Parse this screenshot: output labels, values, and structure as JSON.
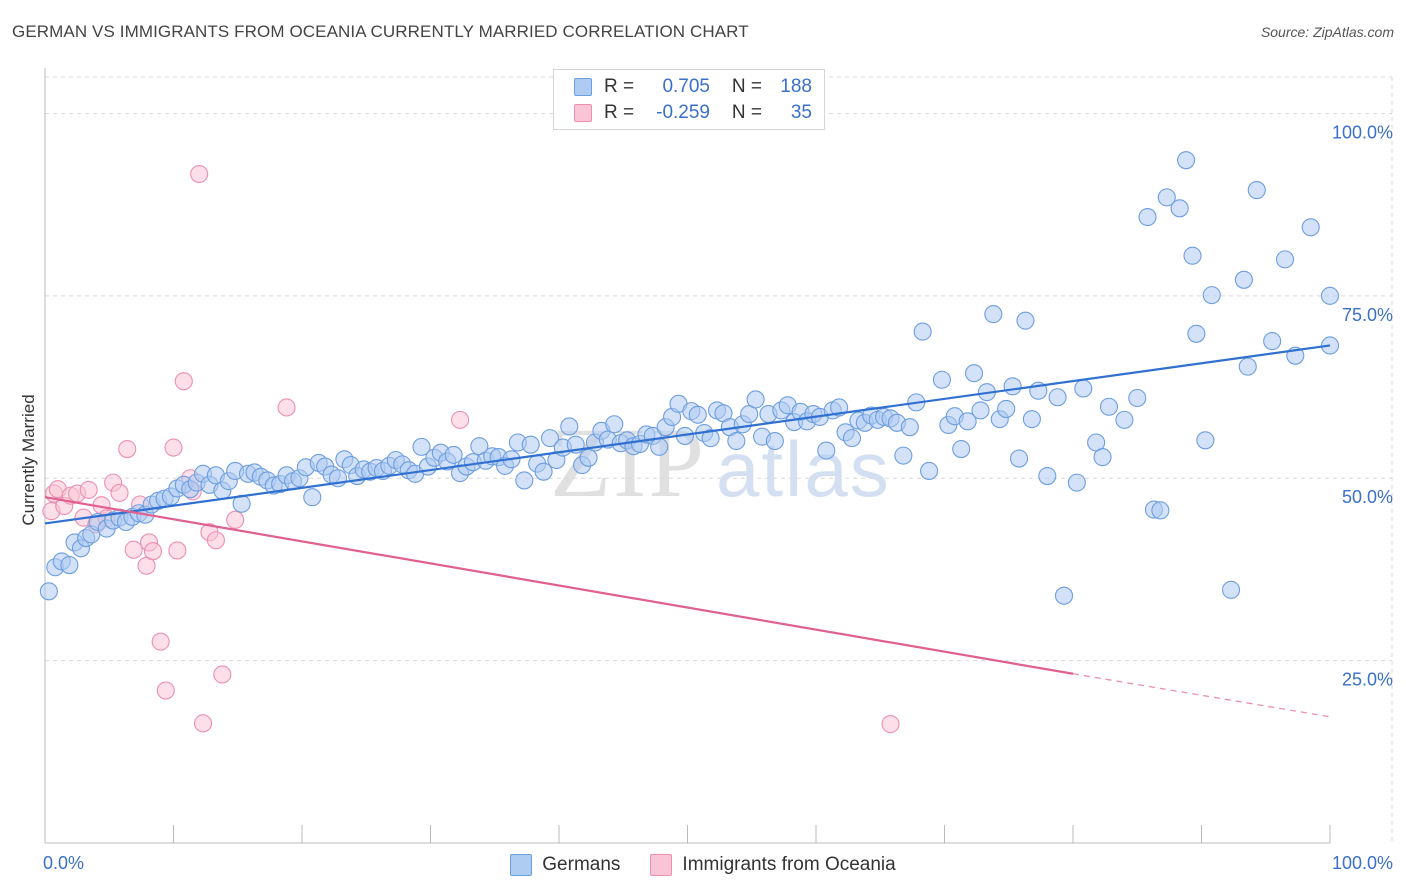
{
  "title": "GERMAN VS IMMIGRANTS FROM OCEANIA CURRENTLY MARRIED CORRELATION CHART",
  "source": "Source: ZipAtlas.com",
  "watermark": {
    "zip": "ZIP",
    "atlas": "atlas"
  },
  "legend_stats": {
    "r_label": "R =",
    "n_label": "N =",
    "germans": {
      "r": "0.705",
      "n": "188"
    },
    "oceania": {
      "r": "-0.259",
      "n": "35"
    }
  },
  "colors": {
    "blue_fill": "#aecbf2",
    "blue_stroke": "#6d9ee0",
    "blue_line": "#3070d0",
    "pink_fill": "#f9c5d6",
    "pink_stroke": "#ec8fb0",
    "pink_line": "#e0608f",
    "tick_text": "#3a70c8",
    "grid": "#d9d9d9"
  },
  "chart_data": {
    "type": "scatter",
    "title": "GERMAN VS IMMIGRANTS FROM OCEANIA CURRENTLY MARRIED CORRELATION CHART",
    "xlabel": "",
    "ylabel": "Currently Married",
    "xlim": [
      0,
      100
    ],
    "ylim": [
      0,
      105
    ],
    "x_tick_labels": [
      "0.0%",
      "100.0%"
    ],
    "y_ticks": [
      {
        "value": 25,
        "label": "25.0%"
      },
      {
        "value": 50,
        "label": "50.0%"
      },
      {
        "value": 75,
        "label": "75.0%"
      },
      {
        "value": 100,
        "label": "100.0%"
      }
    ],
    "series": [
      {
        "name": "Germans",
        "color": "blue",
        "trend": {
          "x0": 0,
          "y0": 43.8,
          "x1": 100,
          "y1": 68.2
        },
        "points": [
          [
            0.3,
            34.5
          ],
          [
            0.8,
            37.8
          ],
          [
            1.3,
            38.6
          ],
          [
            1.9,
            38.1
          ],
          [
            2.3,
            41.2
          ],
          [
            2.8,
            40.4
          ],
          [
            3.2,
            41.8
          ],
          [
            3.6,
            42.3
          ],
          [
            4.1,
            44.0
          ],
          [
            4.8,
            43.1
          ],
          [
            5.3,
            44.2
          ],
          [
            5.8,
            44.6
          ],
          [
            6.3,
            44.0
          ],
          [
            6.8,
            44.7
          ],
          [
            7.3,
            45.2
          ],
          [
            7.8,
            45.0
          ],
          [
            8.3,
            46.4
          ],
          [
            8.8,
            46.9
          ],
          [
            9.3,
            47.2
          ],
          [
            9.8,
            47.5
          ],
          [
            10.3,
            48.6
          ],
          [
            10.8,
            49.1
          ],
          [
            11.3,
            48.5
          ],
          [
            11.8,
            49.4
          ],
          [
            12.3,
            50.6
          ],
          [
            12.8,
            49.1
          ],
          [
            13.3,
            50.4
          ],
          [
            13.8,
            48.3
          ],
          [
            14.3,
            49.6
          ],
          [
            14.8,
            51.0
          ],
          [
            15.3,
            46.5
          ],
          [
            15.8,
            50.6
          ],
          [
            16.3,
            50.8
          ],
          [
            16.8,
            50.2
          ],
          [
            17.3,
            49.7
          ],
          [
            17.8,
            49.0
          ],
          [
            18.3,
            49.2
          ],
          [
            18.8,
            50.4
          ],
          [
            19.3,
            49.6
          ],
          [
            19.8,
            50.0
          ],
          [
            20.3,
            51.5
          ],
          [
            20.8,
            47.4
          ],
          [
            21.3,
            52.1
          ],
          [
            21.8,
            51.6
          ],
          [
            22.3,
            50.5
          ],
          [
            22.8,
            50.0
          ],
          [
            23.3,
            52.6
          ],
          [
            23.8,
            51.8
          ],
          [
            24.3,
            50.3
          ],
          [
            24.8,
            51.2
          ],
          [
            25.3,
            50.9
          ],
          [
            25.8,
            51.4
          ],
          [
            26.3,
            51.0
          ],
          [
            26.8,
            51.7
          ],
          [
            27.3,
            52.5
          ],
          [
            27.8,
            51.9
          ],
          [
            28.3,
            51.1
          ],
          [
            28.8,
            50.6
          ],
          [
            29.3,
            54.3
          ],
          [
            29.8,
            51.6
          ],
          [
            30.3,
            52.8
          ],
          [
            30.8,
            53.5
          ],
          [
            31.3,
            52.3
          ],
          [
            31.8,
            53.2
          ],
          [
            32.3,
            50.7
          ],
          [
            32.8,
            51.6
          ],
          [
            33.3,
            52.2
          ],
          [
            33.8,
            54.4
          ],
          [
            34.3,
            52.4
          ],
          [
            34.8,
            53.0
          ],
          [
            35.3,
            52.9
          ],
          [
            35.8,
            51.7
          ],
          [
            36.3,
            52.6
          ],
          [
            36.8,
            54.9
          ],
          [
            37.3,
            49.7
          ],
          [
            37.8,
            54.6
          ],
          [
            38.3,
            52.0
          ],
          [
            38.8,
            50.9
          ],
          [
            39.3,
            55.5
          ],
          [
            39.8,
            52.5
          ],
          [
            40.3,
            54.2
          ],
          [
            40.8,
            57.1
          ],
          [
            41.3,
            54.6
          ],
          [
            41.8,
            51.8
          ],
          [
            42.3,
            52.8
          ],
          [
            42.8,
            54.9
          ],
          [
            43.3,
            56.5
          ],
          [
            43.8,
            55.3
          ],
          [
            44.3,
            57.4
          ],
          [
            44.8,
            54.8
          ],
          [
            45.3,
            55.2
          ],
          [
            45.8,
            54.4
          ],
          [
            46.3,
            54.7
          ],
          [
            46.8,
            56.0
          ],
          [
            47.3,
            55.8
          ],
          [
            47.8,
            54.3
          ],
          [
            48.3,
            57.0
          ],
          [
            48.8,
            58.4
          ],
          [
            49.3,
            60.2
          ],
          [
            49.8,
            55.8
          ],
          [
            50.3,
            59.2
          ],
          [
            50.8,
            58.7
          ],
          [
            51.3,
            56.2
          ],
          [
            51.8,
            55.5
          ],
          [
            52.3,
            59.3
          ],
          [
            52.8,
            58.9
          ],
          [
            53.3,
            57.0
          ],
          [
            53.8,
            55.1
          ],
          [
            54.3,
            57.4
          ],
          [
            54.8,
            58.8
          ],
          [
            55.3,
            60.8
          ],
          [
            55.8,
            55.7
          ],
          [
            56.3,
            58.8
          ],
          [
            56.8,
            55.1
          ],
          [
            57.3,
            59.3
          ],
          [
            57.8,
            60.0
          ],
          [
            58.3,
            57.7
          ],
          [
            58.8,
            59.1
          ],
          [
            59.3,
            57.8
          ],
          [
            59.8,
            58.8
          ],
          [
            60.3,
            58.4
          ],
          [
            60.8,
            53.8
          ],
          [
            61.3,
            59.3
          ],
          [
            61.8,
            59.7
          ],
          [
            62.3,
            56.3
          ],
          [
            62.8,
            55.5
          ],
          [
            63.3,
            57.9
          ],
          [
            63.8,
            57.6
          ],
          [
            64.3,
            58.6
          ],
          [
            64.8,
            58.0
          ],
          [
            65.3,
            58.4
          ],
          [
            65.8,
            58.2
          ],
          [
            66.3,
            57.6
          ],
          [
            66.8,
            53.1
          ],
          [
            67.3,
            57.0
          ],
          [
            67.8,
            60.4
          ],
          [
            68.3,
            70.1
          ],
          [
            68.8,
            51.0
          ],
          [
            69.8,
            63.5
          ],
          [
            70.3,
            57.3
          ],
          [
            70.8,
            58.5
          ],
          [
            71.3,
            54.0
          ],
          [
            71.8,
            57.8
          ],
          [
            72.3,
            64.4
          ],
          [
            72.8,
            59.3
          ],
          [
            73.3,
            61.8
          ],
          [
            73.8,
            72.5
          ],
          [
            74.3,
            58.1
          ],
          [
            74.8,
            59.5
          ],
          [
            75.3,
            62.6
          ],
          [
            75.8,
            52.7
          ],
          [
            76.3,
            71.6
          ],
          [
            76.8,
            58.1
          ],
          [
            77.3,
            62.0
          ],
          [
            78.0,
            50.3
          ],
          [
            78.8,
            61.1
          ],
          [
            79.3,
            33.9
          ],
          [
            80.3,
            49.4
          ],
          [
            80.8,
            62.3
          ],
          [
            81.8,
            54.9
          ],
          [
            82.3,
            52.9
          ],
          [
            82.8,
            59.8
          ],
          [
            85.8,
            85.8
          ],
          [
            86.3,
            45.7
          ],
          [
            86.8,
            45.6
          ],
          [
            87.3,
            88.5
          ],
          [
            88.3,
            87.0
          ],
          [
            88.8,
            93.6
          ],
          [
            89.3,
            80.5
          ],
          [
            89.6,
            69.8
          ],
          [
            90.3,
            55.2
          ],
          [
            90.8,
            75.1
          ],
          [
            92.3,
            34.7
          ],
          [
            93.3,
            77.2
          ],
          [
            93.6,
            65.3
          ],
          [
            94.3,
            89.5
          ],
          [
            95.5,
            68.8
          ],
          [
            96.5,
            80.0
          ],
          [
            97.3,
            66.8
          ],
          [
            98.5,
            84.4
          ],
          [
            100.0,
            75.0
          ],
          [
            100.0,
            68.2
          ],
          [
            85.0,
            61.0
          ],
          [
            84.0,
            58.0
          ]
        ]
      },
      {
        "name": "Immigrants from Oceania",
        "color": "pink",
        "trend": {
          "x0": 0,
          "y0": 47.4,
          "x1": 80,
          "y1": 23.2,
          "dash_to": {
            "x": 100,
            "y": 17.3
          }
        },
        "points": [
          [
            0.5,
            45.5
          ],
          [
            0.7,
            47.9
          ],
          [
            1.0,
            48.5
          ],
          [
            1.5,
            46.2
          ],
          [
            2.0,
            47.6
          ],
          [
            2.5,
            47.9
          ],
          [
            3.0,
            44.6
          ],
          [
            3.4,
            48.4
          ],
          [
            4.0,
            43.7
          ],
          [
            4.4,
            46.3
          ],
          [
            4.8,
            44.5
          ],
          [
            5.3,
            49.4
          ],
          [
            5.8,
            48.0
          ],
          [
            6.4,
            54.0
          ],
          [
            6.9,
            40.2
          ],
          [
            7.4,
            46.4
          ],
          [
            7.9,
            38.0
          ],
          [
            8.1,
            41.2
          ],
          [
            8.4,
            40.0
          ],
          [
            9.0,
            27.6
          ],
          [
            9.4,
            20.9
          ],
          [
            10.0,
            54.2
          ],
          [
            10.3,
            40.1
          ],
          [
            10.8,
            63.3
          ],
          [
            11.3,
            50.0
          ],
          [
            12.0,
            91.7
          ],
          [
            12.3,
            16.4
          ],
          [
            12.8,
            42.6
          ],
          [
            13.3,
            41.5
          ],
          [
            13.8,
            23.1
          ],
          [
            14.8,
            44.3
          ],
          [
            18.8,
            59.7
          ],
          [
            32.3,
            58.0
          ],
          [
            65.8,
            16.3
          ],
          [
            11.5,
            48.2
          ]
        ]
      }
    ]
  },
  "bottom_legend": {
    "germans": "Germans",
    "oceania": "Immigrants from Oceania"
  }
}
